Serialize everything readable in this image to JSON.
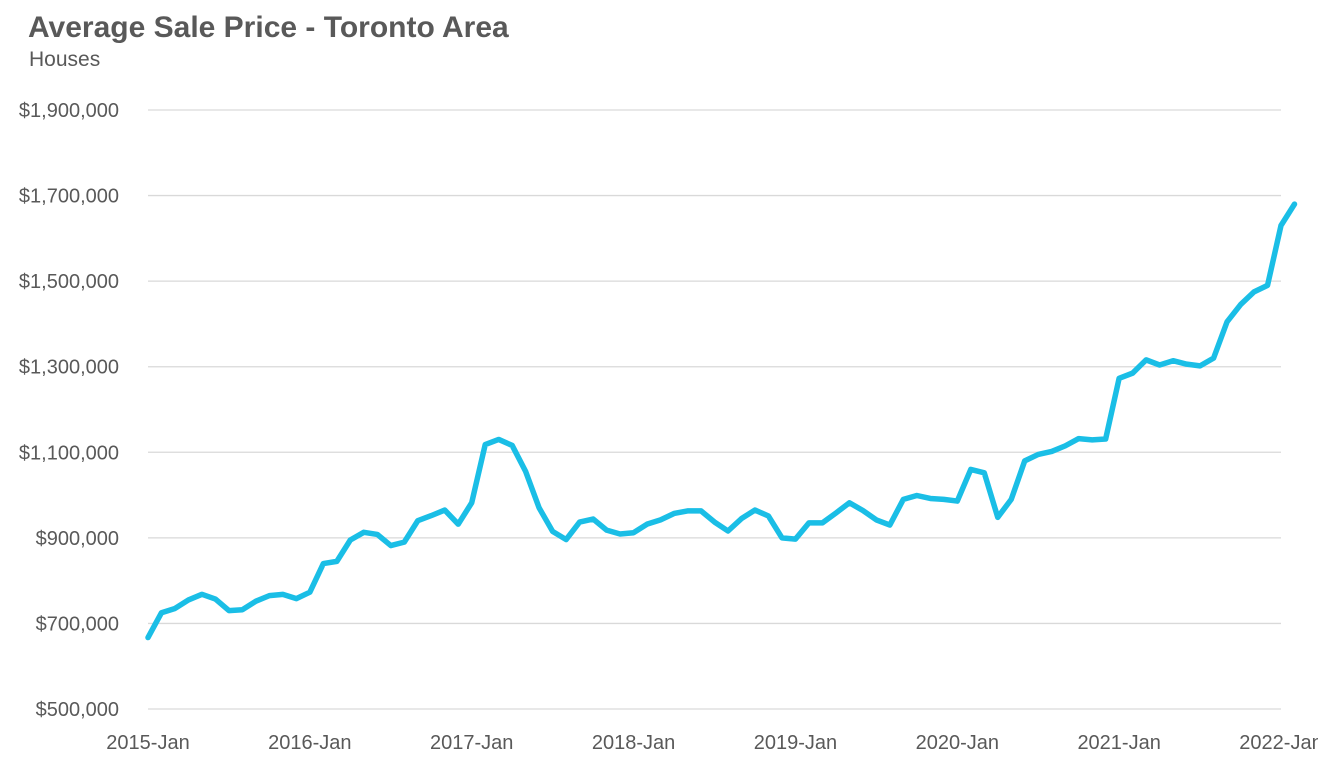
{
  "chart_data": {
    "type": "line",
    "title": "Average Sale Price - Toronto Area",
    "subtitle": "Houses",
    "xlabel": "",
    "ylabel": "",
    "ylim": [
      500000,
      1900000
    ],
    "y_ticks": [
      500000,
      700000,
      900000,
      1100000,
      1300000,
      1500000,
      1700000,
      1900000
    ],
    "y_tick_labels": [
      "$500,000",
      "$700,000",
      "$900,000",
      "$1,100,000",
      "$1,300,000",
      "$1,500,000",
      "$1,700,000",
      "$1,900,000"
    ],
    "x_tick_labels": [
      "2015-Jan",
      "2016-Jan",
      "2017-Jan",
      "2018-Jan",
      "2019-Jan",
      "2020-Jan",
      "2021-Jan",
      "2022-Jan"
    ],
    "x_tick_month_index": [
      0,
      12,
      24,
      36,
      48,
      60,
      72,
      84
    ],
    "grid": true,
    "legend": "none",
    "series": [
      {
        "name": "Houses",
        "color": "#1ABEE6",
        "start": "2015-Jan",
        "values": [
          667000,
          725000,
          735000,
          755000,
          768000,
          757000,
          730000,
          732000,
          752000,
          765000,
          768000,
          758000,
          773000,
          840000,
          845000,
          895000,
          913000,
          908000,
          882000,
          890000,
          940000,
          952000,
          965000,
          932000,
          982000,
          1118000,
          1130000,
          1116000,
          1055000,
          970000,
          915000,
          896000,
          937000,
          944000,
          918000,
          909000,
          912000,
          932000,
          942000,
          957000,
          963000,
          963000,
          937000,
          916000,
          945000,
          965000,
          951000,
          900000,
          897000,
          935000,
          935000,
          958000,
          982000,
          964000,
          942000,
          930000,
          990000,
          999000,
          992000,
          990000,
          986000,
          1060000,
          1052000,
          948000,
          990000,
          1080000,
          1095000,
          1102000,
          1115000,
          1132000,
          1129000,
          1131000,
          1273000,
          1285000,
          1316000,
          1304000,
          1314000,
          1306000,
          1302000,
          1320000,
          1405000,
          1445000,
          1475000,
          1490000,
          1630000,
          1680000
        ]
      }
    ]
  }
}
